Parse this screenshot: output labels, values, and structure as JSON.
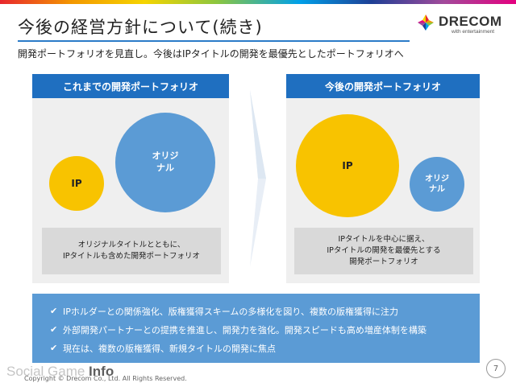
{
  "slide": {
    "title": "今後の経営方針について(続き)",
    "subtitle": "開発ポートフォリオを見直し。今後はIPタイトルの開発を最優先としたポートフォリオへ",
    "page_number": "7"
  },
  "logo": {
    "text": "DRECOM",
    "sub": "with entertainment"
  },
  "left_panel": {
    "header": "これまでの開発ポートフォリオ",
    "ip_label": "IP",
    "original_label": "オリジ\nナル",
    "ip_share": 0.36,
    "original_share": 0.64,
    "caption_line1": "オリジナルタイトルとともに、",
    "caption_line2": "IPタイトルも含めた開発ポートフォリオ"
  },
  "right_panel": {
    "header": "今後の開発ポートフォリオ",
    "ip_label": "IP",
    "original_label": "オリジ\nナル",
    "ip_share": 0.65,
    "original_share": 0.35,
    "caption_line1": "IPタイトルを中心に据え、",
    "caption_line2": "IPタイトルの開発を最優先とする",
    "caption_line3": "開発ポートフォリオ"
  },
  "bullets": [
    "IPホルダーとの関係強化、版権獲得スキームの多様化を図り、複数の版権獲得に注力",
    "外部開発パートナーとの提携を推進し、開発力を強化。開発スピードも高め増産体制を構築",
    "現在は、複数の版権獲得、新規タイトルの開発に焦点"
  ],
  "footer": {
    "copyright": "Copyright © Drecom Co., Ltd. All Rights Reserved.",
    "watermark_a": "Social Game ",
    "watermark_b": "Info"
  },
  "colors": {
    "accent_blue": "#1f6fc0",
    "circle_blue": "#5b9bd5",
    "circle_yellow": "#f8c300"
  }
}
